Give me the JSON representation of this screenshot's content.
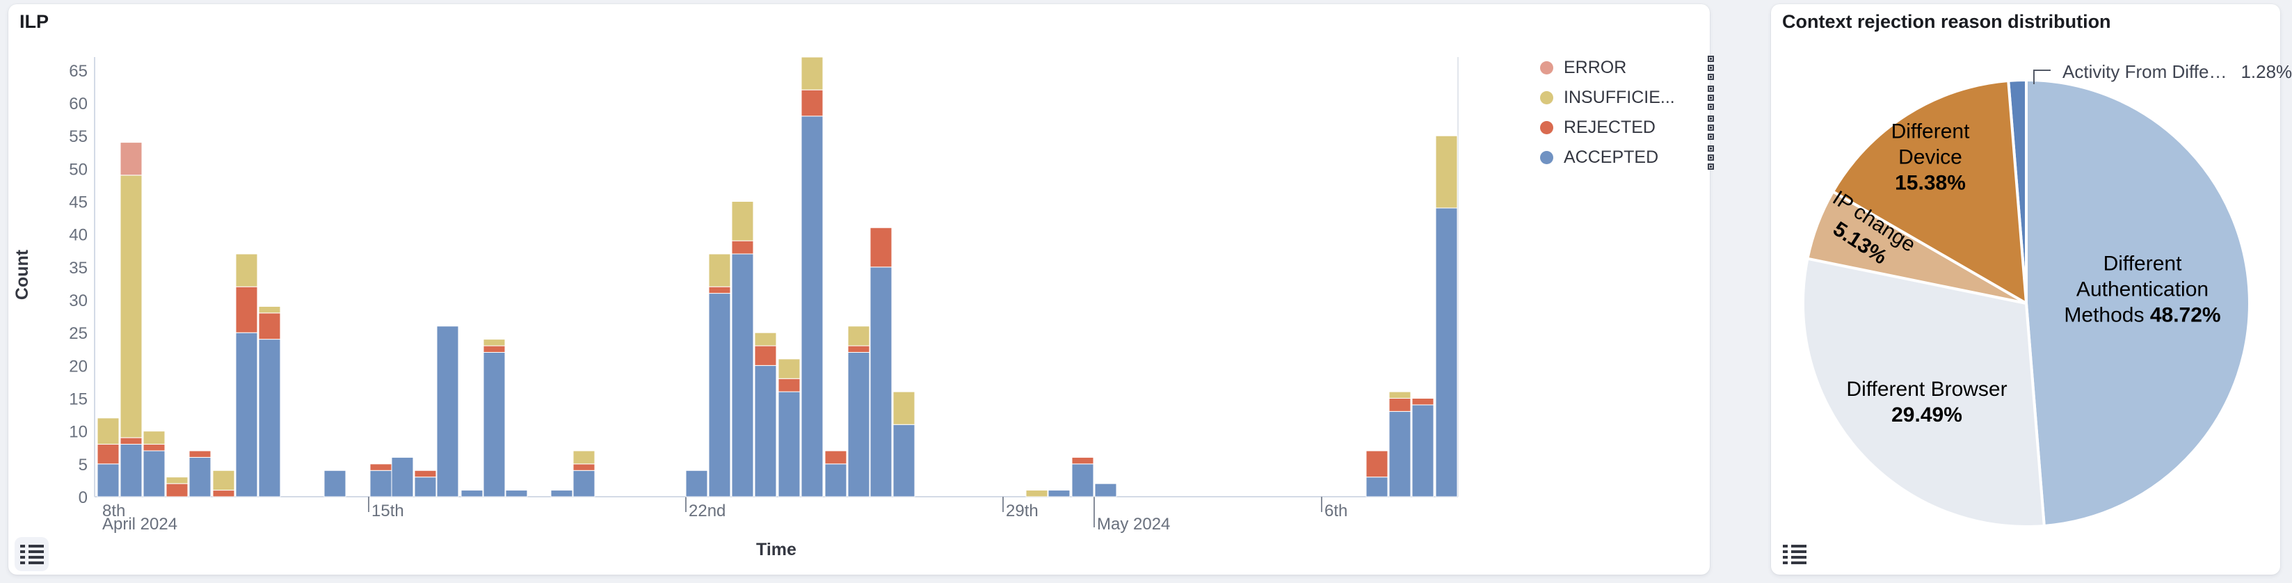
{
  "left_panel": {
    "list_button": "legend-toggle"
  },
  "right_panel": {
    "list_button": "legend-toggle"
  },
  "chart_data": [
    {
      "type": "bar",
      "subtype": "stacked-time-histogram",
      "title": "ILP",
      "xlabel": "Time",
      "ylabel": "Count",
      "ylim": [
        0,
        67
      ],
      "grid": false,
      "legend_position": "right",
      "yticks": [
        0,
        5,
        10,
        15,
        20,
        25,
        30,
        35,
        40,
        45,
        50,
        55,
        60,
        65
      ],
      "xticks": [
        {
          "x": 131,
          "label1": "8th",
          "label2": "April 2024",
          "tick": 0
        },
        {
          "x": 518,
          "label1": "15th",
          "label2": "",
          "tick": 22
        },
        {
          "x": 974,
          "label1": "22nd",
          "label2": "",
          "tick": 22
        },
        {
          "x": 1430,
          "label1": "29th",
          "label2": "",
          "tick": 22
        },
        {
          "x": 1561,
          "label1": "",
          "label2": "May 2024",
          "tick": 44
        },
        {
          "x": 1888,
          "label1": "6th",
          "label2": "",
          "tick": 22
        }
      ],
      "legend": [
        {
          "id": "error",
          "label": "ERROR",
          "color": "#E29C8E"
        },
        {
          "id": "insufficient",
          "label": "INSUFFICIE...",
          "color": "#D9C77C"
        },
        {
          "id": "rejected",
          "label": "REJECTED",
          "color": "#D96A4F"
        },
        {
          "id": "accepted",
          "label": "ACCEPTED",
          "color": "#7092C2"
        }
      ],
      "stack_order_bottom_to_top": [
        "accepted",
        "rejected",
        "insufficient",
        "error"
      ],
      "bars": [
        {
          "x": 128,
          "accepted": 5,
          "rejected": 3,
          "insufficient": 4,
          "error": 0
        },
        {
          "x": 161,
          "accepted": 8,
          "rejected": 1,
          "insufficient": 40,
          "error": 5
        },
        {
          "x": 194,
          "accepted": 7,
          "rejected": 1,
          "insufficient": 2,
          "error": 0
        },
        {
          "x": 227,
          "accepted": 0,
          "rejected": 2,
          "insufficient": 1,
          "error": 0
        },
        {
          "x": 260,
          "accepted": 6,
          "rejected": 1,
          "insufficient": 0,
          "error": 0
        },
        {
          "x": 294,
          "accepted": 0,
          "rejected": 1,
          "insufficient": 3,
          "error": 0
        },
        {
          "x": 327,
          "accepted": 25,
          "rejected": 7,
          "insufficient": 5,
          "error": 0
        },
        {
          "x": 360,
          "accepted": 24,
          "rejected": 4,
          "insufficient": 1,
          "error": 0
        },
        {
          "x": 454,
          "accepted": 4,
          "rejected": 0,
          "insufficient": 0,
          "error": 0
        },
        {
          "x": 520,
          "accepted": 4,
          "rejected": 1,
          "insufficient": 0,
          "error": 0
        },
        {
          "x": 551,
          "accepted": 6,
          "rejected": 0,
          "insufficient": 0,
          "error": 0
        },
        {
          "x": 584,
          "accepted": 3,
          "rejected": 1,
          "insufficient": 0,
          "error": 0
        },
        {
          "x": 616,
          "accepted": 26,
          "rejected": 0,
          "insufficient": 0,
          "error": 0
        },
        {
          "x": 651,
          "accepted": 1,
          "rejected": 0,
          "insufficient": 0,
          "error": 0
        },
        {
          "x": 683,
          "accepted": 22,
          "rejected": 1,
          "insufficient": 1,
          "error": 0
        },
        {
          "x": 715,
          "accepted": 1,
          "rejected": 0,
          "insufficient": 0,
          "error": 0
        },
        {
          "x": 780,
          "accepted": 1,
          "rejected": 0,
          "insufficient": 0,
          "error": 0
        },
        {
          "x": 812,
          "accepted": 4,
          "rejected": 1,
          "insufficient": 2,
          "error": 0
        },
        {
          "x": 974,
          "accepted": 4,
          "rejected": 0,
          "insufficient": 0,
          "error": 0
        },
        {
          "x": 1007,
          "accepted": 31,
          "rejected": 1,
          "insufficient": 5,
          "error": 0
        },
        {
          "x": 1040,
          "accepted": 37,
          "rejected": 2,
          "insufficient": 6,
          "error": 0
        },
        {
          "x": 1073,
          "accepted": 20,
          "rejected": 3,
          "insufficient": 2,
          "error": 0
        },
        {
          "x": 1107,
          "accepted": 16,
          "rejected": 2,
          "insufficient": 3,
          "error": 0
        },
        {
          "x": 1140,
          "accepted": 58,
          "rejected": 4,
          "insufficient": 5,
          "error": 0
        },
        {
          "x": 1174,
          "accepted": 5,
          "rejected": 2,
          "insufficient": 0,
          "error": 0
        },
        {
          "x": 1207,
          "accepted": 22,
          "rejected": 1,
          "insufficient": 3,
          "error": 0
        },
        {
          "x": 1239,
          "accepted": 35,
          "rejected": 6,
          "insufficient": 0,
          "error": 0
        },
        {
          "x": 1272,
          "accepted": 11,
          "rejected": 0,
          "insufficient": 5,
          "error": 0
        },
        {
          "x": 1463,
          "accepted": 0,
          "rejected": 0,
          "insufficient": 1,
          "error": 0
        },
        {
          "x": 1495,
          "accepted": 1,
          "rejected": 0,
          "insufficient": 0,
          "error": 0
        },
        {
          "x": 1529,
          "accepted": 5,
          "rejected": 1,
          "insufficient": 0,
          "error": 0
        },
        {
          "x": 1562,
          "accepted": 2,
          "rejected": 0,
          "insufficient": 0,
          "error": 0
        },
        {
          "x": 1952,
          "accepted": 3,
          "rejected": 4,
          "insufficient": 0,
          "error": 0
        },
        {
          "x": 1985,
          "accepted": 13,
          "rejected": 2,
          "insufficient": 1,
          "error": 0
        },
        {
          "x": 2018,
          "accepted": 14,
          "rejected": 1,
          "insufficient": 0,
          "error": 0
        },
        {
          "x": 2052,
          "accepted": 44,
          "rejected": 0,
          "insufficient": 11,
          "error": 0
        }
      ]
    },
    {
      "type": "pie",
      "title": "Context rejection reason distribution",
      "start_angle_deg_from_12": -4.608,
      "clockwise": true,
      "slices": [
        {
          "id": "activity",
          "label": "Activity From Diffe…",
          "pct": 1.28,
          "color": "#5C83BB"
        },
        {
          "id": "auth",
          "label": "Different Authentication Methods",
          "pct": 48.72,
          "color": "#AAC1DC"
        },
        {
          "id": "browser",
          "label": "Different Browser",
          "pct": 29.49,
          "color": "#E7EBF1"
        },
        {
          "id": "ip",
          "label": "IP change",
          "pct": 5.13,
          "color": "#DCB48C"
        },
        {
          "id": "device",
          "label": "Different Device",
          "pct": 15.38,
          "color": "#C9853D"
        }
      ],
      "labels": {
        "activity": {
          "name": "Activity From Diffe…",
          "pct": "1.28%"
        },
        "auth": {
          "line1": "Different",
          "line2": "Authentication",
          "line3": "Methods",
          "pct": "48.72%"
        },
        "browser": {
          "line1": "Different Browser",
          "pct": "29.49%"
        },
        "ip": {
          "line1": "IP change",
          "pct": "5.13%"
        },
        "device": {
          "line1": "Different",
          "line2": "Device",
          "pct": "15.38%"
        }
      }
    }
  ]
}
